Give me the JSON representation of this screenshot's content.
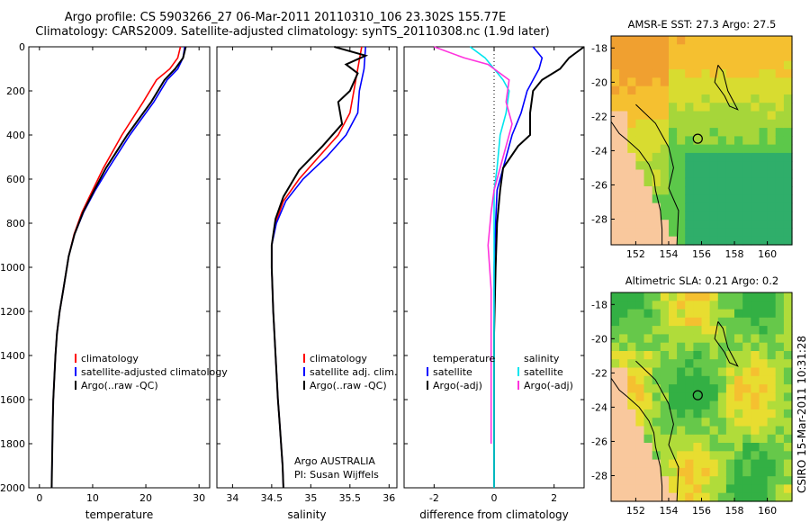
{
  "header": {
    "line1": "Argo profile: CS 5903266_27 06-Mar-2011 20110310_106 23.302S 155.77E",
    "line2": "Climatology: CARS2009. Satellite-adjusted climatology: synTS_20110308.nc (1.9d later)"
  },
  "colors": {
    "climatology": "#ff0000",
    "satellite": "#0000ff",
    "argo": "#000000",
    "sat_diff_sal": "#00e5ee",
    "argo_diff_sal": "#ff33dd"
  },
  "chart_data": [
    {
      "type": "line",
      "title": "",
      "xlabel": "temperature",
      "ylabel": "",
      "xlim": [
        -2,
        32
      ],
      "ylim": [
        2000,
        0
      ],
      "xticks": [
        0,
        10,
        20,
        30
      ],
      "yticks": [
        0,
        200,
        400,
        600,
        800,
        1000,
        1200,
        1400,
        1600,
        1800,
        2000
      ],
      "legend": [
        "climatology",
        "satellite-adjusted climatology",
        "Argo(..raw -QC)"
      ],
      "series": [
        {
          "name": "climatology",
          "color": "#ff0000",
          "x": [
            26.5,
            26.0,
            24.5,
            22.0,
            19.5,
            15.5,
            12.0,
            10.0,
            8.0,
            6.5,
            5.5,
            4.5,
            3.8,
            3.3,
            3.0,
            2.8,
            2.6,
            2.5
          ],
          "y": [
            0,
            50,
            100,
            150,
            250,
            400,
            550,
            650,
            750,
            850,
            950,
            1100,
            1200,
            1300,
            1400,
            1500,
            1600,
            1700
          ]
        },
        {
          "name": "satellite-adjusted climatology",
          "color": "#0000ff",
          "x": [
            27.3,
            27.0,
            26.0,
            24.0,
            21.5,
            17.0,
            13.0,
            10.5,
            8.3,
            6.6,
            5.5,
            4.5,
            3.8,
            3.3,
            3.0,
            2.8,
            2.6,
            2.5,
            2.4,
            2.3
          ],
          "y": [
            0,
            50,
            100,
            150,
            250,
            400,
            550,
            650,
            750,
            850,
            950,
            1100,
            1200,
            1300,
            1400,
            1500,
            1600,
            1700,
            1850,
            2000
          ]
        },
        {
          "name": "Argo(..raw -QC)",
          "color": "#000000",
          "x": [
            27.5,
            27.0,
            25.5,
            23.5,
            21.0,
            16.5,
            12.5,
            10.3,
            8.2,
            6.6,
            5.5,
            4.5,
            3.8,
            3.3,
            3.0,
            2.8,
            2.6,
            2.5,
            2.4,
            2.3
          ],
          "y": [
            0,
            50,
            100,
            150,
            250,
            400,
            550,
            650,
            750,
            850,
            950,
            1100,
            1200,
            1300,
            1400,
            1500,
            1600,
            1700,
            1850,
            2000
          ]
        }
      ]
    },
    {
      "type": "line",
      "title": "",
      "xlabel": "salinity",
      "ylabel": "",
      "xlim": [
        33.8,
        36.1
      ],
      "ylim": [
        2000,
        0
      ],
      "xticks": [
        34,
        34.5,
        35,
        35.5,
        36
      ],
      "legend": [
        "climatology",
        "satellite adj. clim.",
        "Argo(..raw -QC)"
      ],
      "annotations": [
        "Argo AUSTRALIA",
        "PI: Susan Wijffels"
      ],
      "series": [
        {
          "name": "climatology",
          "color": "#ff0000",
          "x": [
            35.65,
            35.6,
            35.55,
            35.5,
            35.35,
            35.1,
            34.85,
            34.65,
            34.55,
            34.5,
            34.5,
            34.52,
            34.55,
            34.58,
            34.6,
            34.62,
            34.64,
            34.65
          ],
          "y": [
            0,
            100,
            200,
            300,
            400,
            500,
            600,
            700,
            800,
            900,
            1000,
            1200,
            1400,
            1600,
            1700,
            1800,
            1900,
            2000
          ]
        },
        {
          "name": "satellite adj. clim.",
          "color": "#0000ff",
          "x": [
            35.7,
            35.68,
            35.62,
            35.6,
            35.45,
            35.2,
            34.9,
            34.68,
            34.56,
            34.5,
            34.5,
            34.52,
            34.55,
            34.58,
            34.6,
            34.62,
            34.64,
            34.65
          ],
          "y": [
            0,
            100,
            200,
            300,
            400,
            500,
            600,
            700,
            800,
            900,
            1000,
            1200,
            1400,
            1600,
            1700,
            1800,
            1900,
            2000
          ]
        },
        {
          "name": "Argo(..raw -QC)",
          "color": "#000000",
          "x": [
            35.3,
            35.7,
            35.45,
            35.6,
            35.5,
            35.35,
            35.4,
            35.15,
            34.85,
            34.65,
            34.55,
            34.5,
            34.5,
            34.52,
            34.55,
            34.58,
            34.6,
            34.62,
            34.64,
            34.65
          ],
          "y": [
            0,
            40,
            80,
            120,
            200,
            250,
            350,
            450,
            560,
            680,
            780,
            900,
            1000,
            1200,
            1400,
            1600,
            1700,
            1800,
            1900,
            2000
          ]
        }
      ]
    },
    {
      "type": "line",
      "title": "",
      "xlabel": "difference from climatology",
      "ylabel": "",
      "xlim": [
        -3,
        3
      ],
      "ylim": [
        2000,
        0
      ],
      "xticks": [
        -2,
        0,
        2
      ],
      "legend": [
        "temperature",
        "satellite",
        "Argo(-adj)",
        "salinity",
        "satellite",
        "Argo(-adj)"
      ],
      "series": [
        {
          "name": "temperature satellite",
          "color": "#0000ff",
          "x": [
            1.3,
            1.6,
            1.5,
            1.3,
            1.1,
            0.9,
            0.6,
            0.3,
            0.1,
            0.05,
            0.0,
            0.0,
            0.0,
            0.0
          ],
          "y": [
            0,
            50,
            100,
            150,
            200,
            300,
            400,
            550,
            650,
            800,
            1000,
            1300,
            1600,
            2000
          ]
        },
        {
          "name": "temperature Argo(-adj)",
          "color": "#000000",
          "x": [
            3.0,
            2.5,
            2.2,
            1.6,
            1.3,
            1.2,
            1.2,
            0.8,
            0.3,
            0.2,
            0.1,
            0.05,
            0.0,
            0.0,
            0.0
          ],
          "y": [
            0,
            50,
            100,
            150,
            200,
            300,
            400,
            450,
            550,
            650,
            800,
            1000,
            1300,
            1600,
            2000
          ]
        },
        {
          "name": "salinity satellite",
          "color": "#00e5ee",
          "x": [
            -0.8,
            -0.3,
            0.0,
            0.3,
            0.5,
            0.4,
            0.2,
            0.1,
            0.0,
            0.0,
            0.0,
            0.0,
            0.0
          ],
          "y": [
            0,
            50,
            100,
            150,
            200,
            300,
            400,
            550,
            650,
            800,
            1000,
            1500,
            2000
          ]
        },
        {
          "name": "salinity Argo(-adj)",
          "color": "#ff33dd",
          "x": [
            -2.0,
            -1.0,
            -0.2,
            0.5,
            0.4,
            0.6,
            0.3,
            0.0,
            -0.1,
            -0.2,
            -0.1,
            -0.1,
            -0.1
          ],
          "y": [
            0,
            50,
            80,
            150,
            250,
            350,
            500,
            650,
            750,
            900,
            1100,
            1500,
            1800
          ]
        }
      ]
    },
    {
      "type": "heatmap",
      "title": "AMSR-E SST: 27.3 Argo: 27.5",
      "xlim": [
        150.5,
        161.5
      ],
      "ylim": [
        -29.5,
        -17.3
      ],
      "xticks": [
        152,
        154,
        156,
        158,
        160
      ],
      "yticks": [
        -18,
        -20,
        -22,
        -24,
        -26,
        -28
      ],
      "marker": {
        "lon": 155.77,
        "lat": -23.302
      }
    },
    {
      "type": "heatmap",
      "title": "Altimetric SLA: 0.21 Argo: 0.2",
      "xlim": [
        150.5,
        161.5
      ],
      "ylim": [
        -29.5,
        -17.3
      ],
      "xticks": [
        152,
        154,
        156,
        158,
        160
      ],
      "yticks": [
        -18,
        -20,
        -22,
        -24,
        -26,
        -28
      ],
      "marker": {
        "lon": 155.77,
        "lat": -23.302
      }
    }
  ],
  "stamp": "CSIRO 15-Mar-2011 10:31:28"
}
